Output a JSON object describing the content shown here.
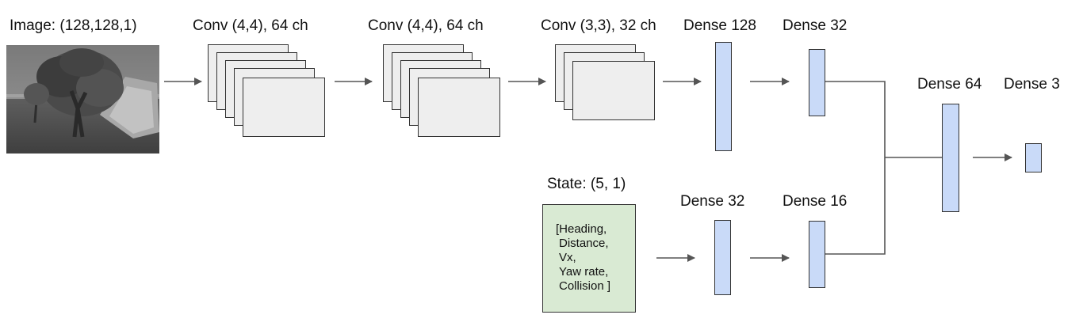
{
  "input_image": {
    "label": "Image: (128,128,1)",
    "picture": "grayscale-orchard-tree-scene"
  },
  "image_branch": {
    "conv_layers": [
      {
        "label": "Conv (4,4), 64 ch"
      },
      {
        "label": "Conv (4,4), 64 ch"
      },
      {
        "label": "Conv (3,3), 32 ch"
      }
    ],
    "dense_layers": [
      {
        "label": "Dense 128"
      },
      {
        "label": "Dense 32"
      }
    ]
  },
  "state_branch": {
    "label": "State: (5, 1)",
    "lines": [
      "[Heading,",
      "Distance,",
      "Vx,",
      "Yaw rate,",
      "Collision ]"
    ],
    "dense_layers": [
      {
        "label": "Dense 32"
      },
      {
        "label": "Dense 16"
      }
    ]
  },
  "merged": {
    "dense_layers": [
      {
        "label": "Dense 64"
      },
      {
        "label": "Dense 3"
      }
    ]
  },
  "colors": {
    "feature_map": "#eeeeee",
    "dense": "#c9daf8",
    "state": "#d9ead3",
    "connector": "#555555"
  }
}
